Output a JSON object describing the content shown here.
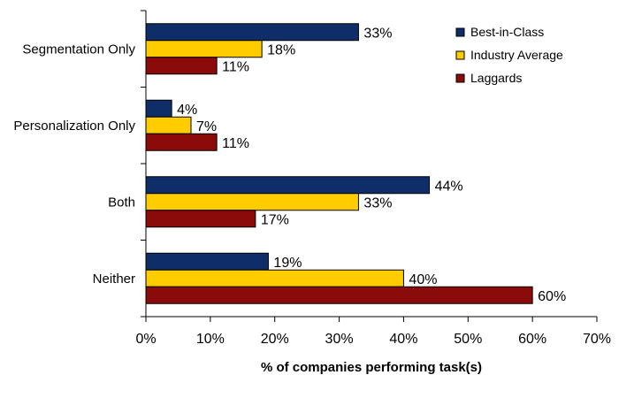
{
  "chart_data": {
    "type": "bar",
    "orientation": "horizontal",
    "categories": [
      "Segmentation Only",
      "Personalization Only",
      "Both",
      "Neither"
    ],
    "series": [
      {
        "name": "Best-in-Class",
        "color": "#0e2d69",
        "values": [
          33,
          4,
          44,
          19
        ],
        "labels": [
          "33%",
          "4%",
          "44%",
          "19%"
        ]
      },
      {
        "name": "Industry Average",
        "color": "#ffcc00",
        "values": [
          18,
          7,
          33,
          40
        ],
        "labels": [
          "18%",
          "7%",
          "33%",
          "40%"
        ]
      },
      {
        "name": "Laggards",
        "color": "#8b0a0a",
        "values": [
          11,
          11,
          17,
          60
        ],
        "labels": [
          "11%",
          "11%",
          "17%",
          "60%"
        ]
      }
    ],
    "xlim": [
      0,
      70
    ],
    "x_ticks": [
      0,
      10,
      20,
      30,
      40,
      50,
      60,
      70
    ],
    "x_tick_labels": [
      "0%",
      "10%",
      "20%",
      "30%",
      "40%",
      "50%",
      "60%",
      "70%"
    ],
    "xlabel": "% of companies performing task(s)",
    "legend": "top-right",
    "grid": false
  }
}
